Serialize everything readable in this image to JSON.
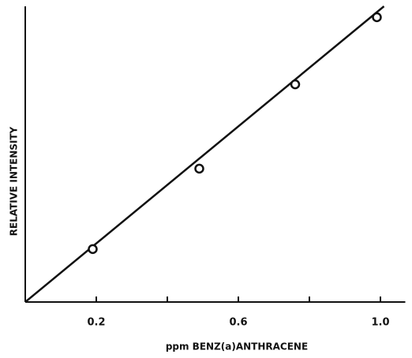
{
  "chart_data": {
    "type": "scatter",
    "xlabel": "ppm BENZ(a)ANTHRACENE",
    "ylabel": "RELATIVE INTENSITY",
    "x": [
      0.19,
      0.49,
      0.76,
      0.99
    ],
    "values": [
      0.179,
      0.451,
      0.736,
      0.963
    ],
    "color": "#111111",
    "fit_line": {
      "x": [
        0,
        1.01
      ],
      "y": [
        0,
        1.0
      ]
    },
    "xlim": [
      0,
      1.07
    ],
    "ylim": [
      0,
      1.0
    ],
    "xticks": [
      0.2,
      0.6,
      {
        "value": 1,
        "label": "1.0"
      }
    ],
    "xminor_ticks": [
      0.4,
      0.8
    ]
  }
}
